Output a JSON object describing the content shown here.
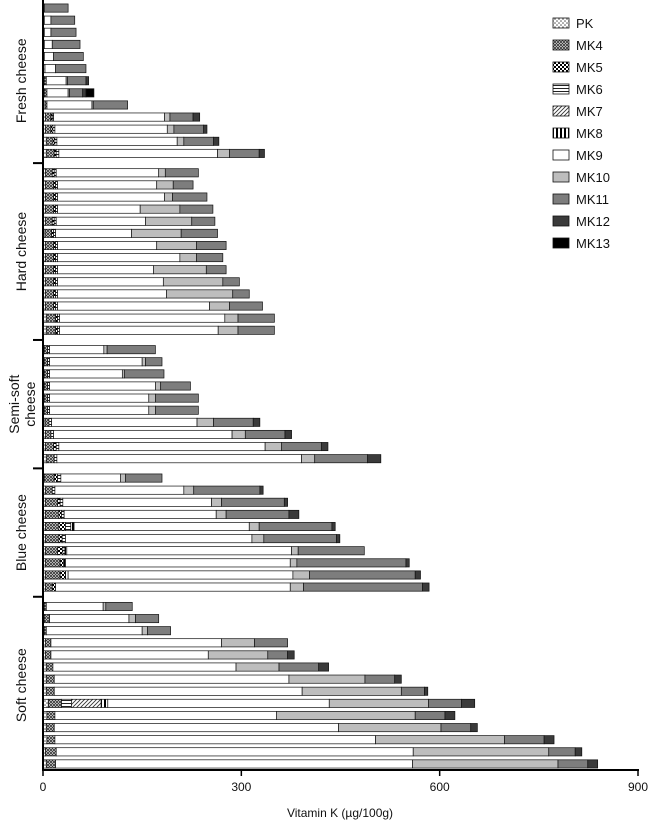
{
  "chart_data": {
    "type": "bar",
    "orientation": "horizontal",
    "stacked": true,
    "xlabel": "Vitamin K (µg/100g)",
    "xlim": [
      0,
      900
    ],
    "xticks": [
      0,
      300,
      600,
      900
    ],
    "grid": false,
    "legend_position": "top-right",
    "components": [
      "PK",
      "MK4",
      "MK5",
      "MK6",
      "MK7",
      "MK8",
      "MK9",
      "MK10",
      "MK11",
      "MK12",
      "MK13"
    ],
    "legend": [
      {
        "name": "PK",
        "pattern": "dots",
        "color": "#d8d8d8"
      },
      {
        "name": "MK4",
        "pattern": "crosshatch",
        "color": "#7a7a7a"
      },
      {
        "name": "MK5",
        "pattern": "checker",
        "color": "#000000"
      },
      {
        "name": "MK6",
        "pattern": "hlines",
        "color": "#555555"
      },
      {
        "name": "MK7",
        "pattern": "diagonal",
        "color": "#777777"
      },
      {
        "name": "MK8",
        "pattern": "vlines",
        "color": "#000000"
      },
      {
        "name": "MK9",
        "pattern": "solid",
        "color": "#ffffff"
      },
      {
        "name": "MK10",
        "pattern": "solid",
        "color": "#bdbdbd"
      },
      {
        "name": "MK11",
        "pattern": "solid",
        "color": "#7d7d7d"
      },
      {
        "name": "MK12",
        "pattern": "solid",
        "color": "#3a3a3a"
      },
      {
        "name": "MK13",
        "pattern": "solid",
        "color": "#000000"
      }
    ],
    "groups": [
      {
        "name": "Fresh cheese",
        "label_lines": [
          "Fresh cheese"
        ],
        "bars": [
          [
            2,
            0,
            0,
            0,
            0,
            0,
            0,
            0,
            36,
            0,
            0
          ],
          [
            2,
            0,
            0,
            0,
            0,
            0,
            10,
            0,
            36,
            0,
            0
          ],
          [
            2,
            0,
            0,
            0,
            0,
            0,
            10,
            0,
            38,
            0,
            0
          ],
          [
            2,
            0,
            0,
            0,
            0,
            0,
            12,
            0,
            42,
            0,
            0
          ],
          [
            2,
            0,
            0,
            0,
            0,
            0,
            14,
            0,
            45,
            0,
            0
          ],
          [
            3,
            0,
            0,
            0,
            0,
            0,
            16,
            0,
            46,
            0,
            0
          ],
          [
            2,
            3,
            0,
            0,
            0,
            0,
            30,
            2,
            28,
            4,
            0
          ],
          [
            2,
            4,
            0,
            0,
            0,
            0,
            32,
            2,
            20,
            5,
            12
          ],
          [
            3,
            3,
            0,
            0,
            0,
            0,
            68,
            2,
            52,
            0,
            0
          ],
          [
            4,
            8,
            2,
            2,
            0,
            0,
            168,
            8,
            35,
            10,
            0
          ],
          [
            4,
            8,
            3,
            3,
            0,
            0,
            170,
            10,
            45,
            5,
            0
          ],
          [
            5,
            10,
            3,
            3,
            0,
            0,
            182,
            10,
            45,
            8,
            0
          ],
          [
            5,
            12,
            3,
            4,
            0,
            0,
            240,
            18,
            45,
            8,
            0
          ]
        ]
      },
      {
        "name": "Hard cheese",
        "label_lines": [
          "Hard cheese"
        ],
        "bars": [
          [
            4,
            10,
            3,
            3,
            0,
            0,
            155,
            10,
            50,
            0,
            0
          ],
          [
            4,
            12,
            3,
            3,
            0,
            0,
            150,
            25,
            30,
            0,
            0
          ],
          [
            4,
            12,
            3,
            3,
            0,
            0,
            162,
            12,
            52,
            0,
            0
          ],
          [
            4,
            12,
            3,
            3,
            0,
            0,
            125,
            60,
            50,
            0,
            0
          ],
          [
            4,
            10,
            3,
            3,
            0,
            0,
            135,
            70,
            35,
            0,
            0
          ],
          [
            3,
            10,
            3,
            3,
            0,
            0,
            115,
            75,
            55,
            0,
            0
          ],
          [
            4,
            12,
            3,
            3,
            0,
            0,
            150,
            60,
            45,
            0,
            0
          ],
          [
            4,
            12,
            3,
            3,
            0,
            0,
            185,
            25,
            40,
            0,
            0
          ],
          [
            4,
            12,
            3,
            3,
            0,
            0,
            145,
            80,
            30,
            0,
            0
          ],
          [
            4,
            12,
            3,
            3,
            0,
            0,
            160,
            90,
            25,
            0,
            0
          ],
          [
            4,
            12,
            3,
            3,
            0,
            0,
            165,
            100,
            25,
            0,
            0
          ],
          [
            4,
            12,
            3,
            3,
            0,
            0,
            230,
            30,
            50,
            0,
            0
          ],
          [
            5,
            14,
            3,
            3,
            0,
            0,
            250,
            20,
            55,
            0,
            0
          ],
          [
            5,
            14,
            3,
            3,
            0,
            0,
            240,
            30,
            55,
            0,
            0
          ]
        ]
      },
      {
        "name": "Semi-soft cheese",
        "label_lines": [
          "Semi-soft",
          "cheese"
        ],
        "bars": [
          [
            2,
            5,
            0,
            3,
            0,
            0,
            82,
            5,
            73,
            0,
            0
          ],
          [
            2,
            5,
            0,
            3,
            0,
            0,
            140,
            5,
            25,
            0,
            0
          ],
          [
            2,
            5,
            0,
            3,
            0,
            0,
            110,
            3,
            60,
            0,
            0
          ],
          [
            2,
            5,
            0,
            3,
            0,
            0,
            160,
            8,
            45,
            0,
            0
          ],
          [
            2,
            5,
            0,
            3,
            0,
            0,
            150,
            10,
            65,
            0,
            0
          ],
          [
            2,
            5,
            0,
            3,
            0,
            0,
            150,
            10,
            65,
            0,
            0
          ],
          [
            3,
            6,
            0,
            4,
            0,
            0,
            220,
            25,
            60,
            10,
            0
          ],
          [
            4,
            8,
            0,
            4,
            0,
            0,
            270,
            20,
            60,
            10,
            0
          ],
          [
            4,
            12,
            4,
            4,
            0,
            0,
            312,
            25,
            60,
            10,
            0
          ],
          [
            5,
            12,
            0,
            4,
            0,
            0,
            370,
            20,
            80,
            20,
            0
          ]
        ]
      },
      {
        "name": "Blue cheese",
        "label_lines": [
          "Blue cheese"
        ],
        "bars": [
          [
            2,
            15,
            5,
            5,
            0,
            0,
            90,
            8,
            55,
            0,
            0
          ],
          [
            4,
            10,
            0,
            4,
            0,
            0,
            195,
            15,
            100,
            5,
            0
          ],
          [
            4,
            18,
            4,
            4,
            0,
            0,
            225,
            15,
            95,
            5,
            0
          ],
          [
            4,
            20,
            4,
            4,
            0,
            0,
            230,
            15,
            95,
            15,
            0
          ],
          [
            4,
            20,
            10,
            8,
            0,
            5,
            265,
            15,
            110,
            5,
            0
          ],
          [
            4,
            20,
            5,
            5,
            0,
            0,
            282,
            18,
            110,
            5,
            0
          ],
          [
            4,
            18,
            8,
            3,
            0,
            3,
            340,
            10,
            100,
            0,
            0
          ],
          [
            4,
            22,
            5,
            0,
            0,
            3,
            340,
            10,
            165,
            5,
            0
          ],
          [
            4,
            22,
            8,
            0,
            0,
            4,
            340,
            25,
            160,
            8,
            0
          ],
          [
            4,
            10,
            5,
            0,
            0,
            0,
            355,
            20,
            180,
            10,
            0
          ]
        ]
      },
      {
        "name": "Soft cheese",
        "label_lines": [
          "Soft cheese"
        ],
        "bars": [
          [
            2,
            3,
            0,
            0,
            0,
            0,
            86,
            4,
            40,
            0,
            0
          ],
          [
            2,
            8,
            0,
            0,
            0,
            0,
            120,
            10,
            35,
            0,
            0
          ],
          [
            2,
            3,
            0,
            0,
            0,
            0,
            145,
            8,
            35,
            0,
            0
          ],
          [
            4,
            8,
            0,
            0,
            0,
            0,
            258,
            50,
            50,
            0,
            0
          ],
          [
            4,
            8,
            0,
            0,
            0,
            0,
            238,
            90,
            30,
            10,
            0
          ],
          [
            5,
            10,
            0,
            0,
            0,
            0,
            277,
            65,
            60,
            15,
            0
          ],
          [
            5,
            12,
            0,
            0,
            0,
            0,
            355,
            115,
            45,
            10,
            0
          ],
          [
            5,
            12,
            0,
            0,
            0,
            0,
            375,
            150,
            35,
            5,
            0
          ],
          [
            8,
            20,
            0,
            15,
            45,
            10,
            335,
            150,
            50,
            20,
            0
          ],
          [
            6,
            12,
            0,
            0,
            0,
            0,
            335,
            210,
            45,
            15,
            0
          ],
          [
            5,
            12,
            0,
            0,
            0,
            0,
            430,
            155,
            45,
            10,
            0
          ],
          [
            6,
            12,
            0,
            0,
            0,
            0,
            485,
            195,
            60,
            15,
            0
          ],
          [
            4,
            16,
            0,
            0,
            0,
            0,
            540,
            205,
            40,
            10,
            0
          ],
          [
            5,
            14,
            0,
            0,
            0,
            0,
            540,
            220,
            45,
            15,
            0
          ]
        ]
      }
    ]
  }
}
